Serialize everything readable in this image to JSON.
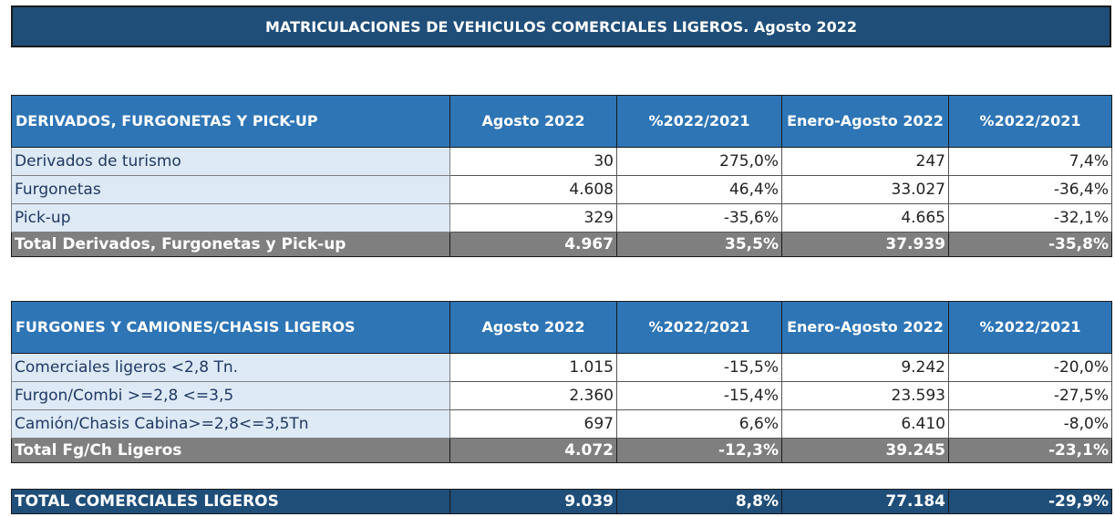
{
  "title": "MATRICULACIONES DE VEHICULOS COMERCIALES LIGEROS. Agosto 2022",
  "table1": {
    "headers": [
      "DERIVADOS, FURGONETAS Y PICK-UP",
      "Agosto 2022",
      "%2022/2021",
      "Enero-Agosto 2022",
      "%2022/2021"
    ],
    "rows": [
      [
        "Derivados de turismo",
        "30",
        "275,0%",
        "247",
        "7,4%"
      ],
      [
        "Furgonetas",
        "4.608",
        "46,4%",
        "33.027",
        "-36,4%"
      ],
      [
        "Pick-up",
        "329",
        "-35,6%",
        "4.665",
        "-32,1%"
      ]
    ],
    "total": [
      "Total Derivados, Furgonetas y Pick-up",
      "4.967",
      "35,5%",
      "37.939",
      "-35,8%"
    ]
  },
  "table2": {
    "headers": [
      "FURGONES Y CAMIONES/CHASIS LIGEROS",
      "Agosto 2022",
      "%2022/2021",
      "Enero-Agosto 2022",
      "%2022/2021"
    ],
    "rows": [
      [
        "Comerciales ligeros <2,8 Tn.",
        "1.015",
        "-15,5%",
        "9.242",
        "-20,0%"
      ],
      [
        "Furgon/Combi >=2,8 <=3,5",
        "2.360",
        "-15,4%",
        "23.593",
        "-27,5%"
      ],
      [
        "Camión/Chasis Cabina>=2,8<=3,5Tn",
        "697",
        "6,6%",
        "6.410",
        "-8,0%"
      ]
    ],
    "total": [
      "Total Fg/Ch Ligeros",
      "4.072",
      "-12,3%",
      "39.245",
      "-23,1%"
    ]
  },
  "grand_total": [
    "TOTAL COMERCIALES LIGEROS",
    "9.039",
    "8,8%",
    "77.184",
    "-29,9%"
  ],
  "colors": {
    "banner": "#1f4e79",
    "header": "#2e75b6",
    "label_bg": "#dde9f5",
    "total_bg": "#7f7f7f"
  }
}
